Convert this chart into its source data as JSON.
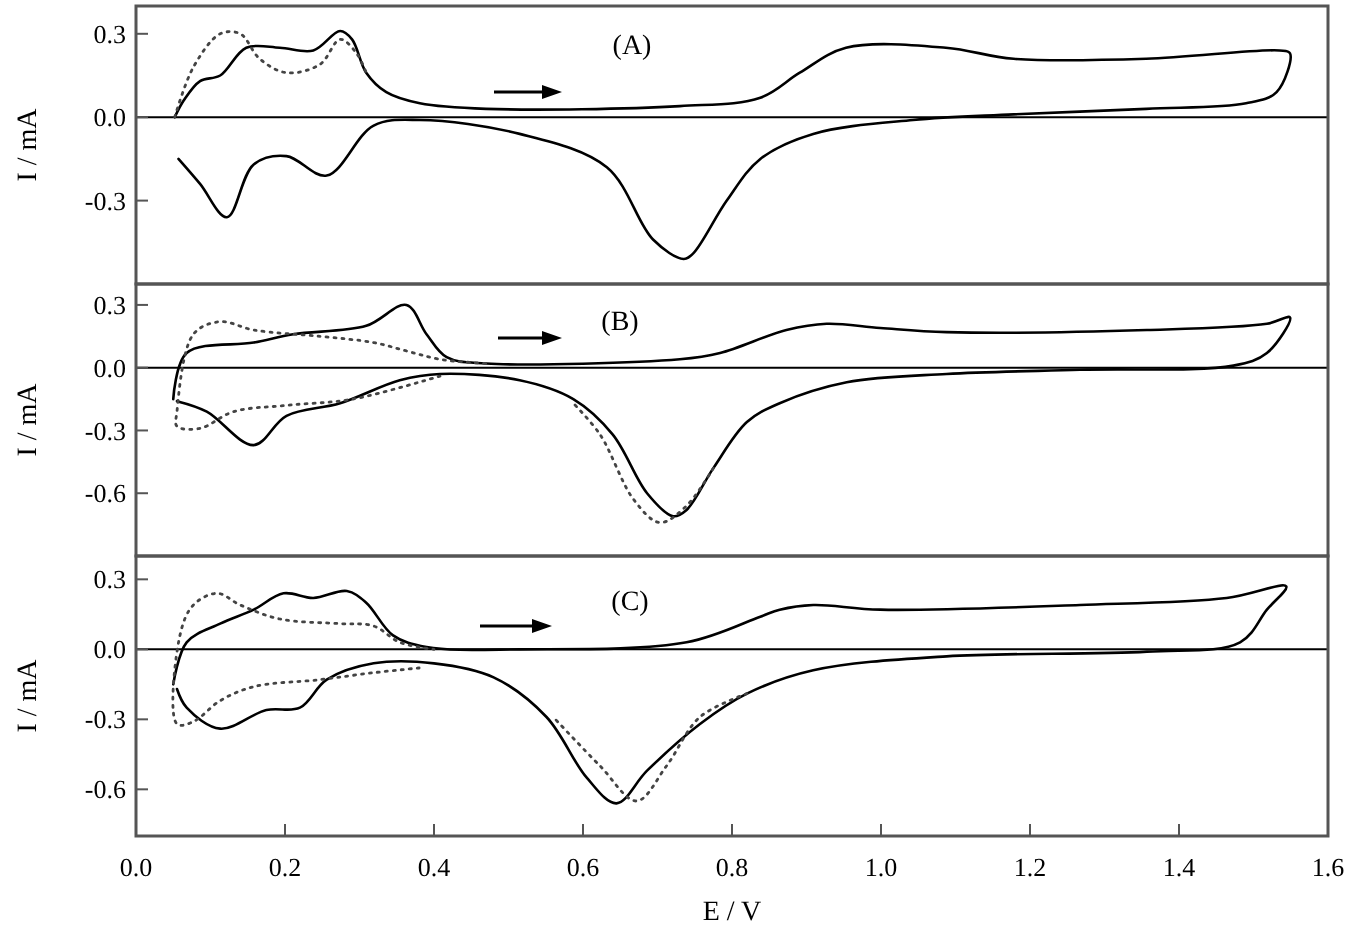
{
  "chart_data": [
    {
      "type": "line",
      "ylabel": "I / mA",
      "annotations": [
        "(A)"
      ],
      "xlim": [
        0,
        1.6
      ],
      "ylim": [
        -0.6,
        0.4
      ],
      "yticks": [
        {
          "value": 0.3,
          "label": "0.3"
        },
        {
          "value": 0,
          "label": "0.0"
        },
        {
          "value": -0.3,
          "label": "-0.3"
        }
      ],
      "tick_labels": "y",
      "ref_lines": [
        {
          "axis": "y",
          "value": 0,
          "color": "#000000"
        }
      ],
      "series": [
        {
          "color": "#000000",
          "line_style": "solid",
          "x": [
            0.052,
            0.064,
            0.086,
            0.113,
            0.148,
            0.193,
            0.238,
            0.274,
            0.29,
            0.309,
            0.336,
            0.381,
            0.47,
            0.73,
            0.838,
            0.891,
            0.953,
            1.087,
            1.178,
            1.356,
            1.535,
            1.549,
            1.531,
            1.49,
            1.356,
            1.178,
            1.043,
            0.909,
            0.838,
            0.793,
            0.748,
            0.735,
            0.694,
            0.632,
            0.515,
            0.381,
            0.319,
            0.256,
            0.202,
            0.158,
            0.122,
            0.086,
            0.057
          ],
          "values": [
            0,
            0.06,
            0.13,
            0.15,
            0.25,
            0.25,
            0.24,
            0.31,
            0.28,
            0.16,
            0.09,
            0.05,
            0.03,
            0.04,
            0.07,
            0.16,
            0.25,
            0.25,
            0.21,
            0.21,
            0.24,
            0.23,
            0.09,
            0.05,
            0.03,
            0.01,
            -0.01,
            -0.06,
            -0.15,
            -0.3,
            -0.49,
            -0.51,
            -0.44,
            -0.18,
            -0.06,
            -0.01,
            -0.03,
            -0.21,
            -0.14,
            -0.17,
            -0.36,
            -0.24,
            -0.15
          ]
        },
        {
          "color": "#444444",
          "line_style": "dotted",
          "x": [
            0.052,
            0.077,
            0.113,
            0.14,
            0.166,
            0.202,
            0.247,
            0.274,
            0.296,
            0.309
          ],
          "values": [
            0,
            0.18,
            0.3,
            0.3,
            0.21,
            0.16,
            0.19,
            0.28,
            0.23,
            0.16
          ]
        }
      ]
    },
    {
      "type": "line",
      "ylabel": "I / mA",
      "annotations": [
        "(B)"
      ],
      "xlim": [
        0,
        1.6
      ],
      "ylim": [
        -0.9,
        0.4
      ],
      "yticks": [
        {
          "value": 0.3,
          "label": "0.3"
        },
        {
          "value": 0,
          "label": "0.0"
        },
        {
          "value": -0.3,
          "label": "-0.3"
        },
        {
          "value": -0.6,
          "label": "-0.6"
        }
      ],
      "tick_labels": "y",
      "ref_lines": [
        {
          "axis": "y",
          "value": 0,
          "color": "#000000"
        }
      ],
      "series": [
        {
          "color": "#000000",
          "line_style": "solid",
          "x": [
            0.05,
            0.068,
            0.158,
            0.211,
            0.309,
            0.363,
            0.39,
            0.417,
            0.47,
            0.73,
            0.784,
            0.873,
            0.927,
            0.999,
            1.088,
            1.357,
            1.518,
            1.549,
            1.518,
            1.473,
            1.267,
            1.088,
            0.954,
            0.864,
            0.82,
            0.775,
            0.739,
            0.721,
            0.686,
            0.64,
            0.587,
            0.515,
            0.408,
            0.354,
            0.274,
            0.202,
            0.158,
            0.095,
            0.055
          ],
          "values": [
            -0.15,
            0.07,
            0.12,
            0.16,
            0.2,
            0.3,
            0.16,
            0.05,
            0.02,
            0.04,
            0.07,
            0.18,
            0.21,
            0.19,
            0.17,
            0.18,
            0.21,
            0.24,
            0.07,
            0.01,
            -0.01,
            -0.03,
            -0.07,
            -0.17,
            -0.26,
            -0.48,
            -0.68,
            -0.71,
            -0.6,
            -0.32,
            -0.15,
            -0.06,
            -0.03,
            -0.06,
            -0.17,
            -0.23,
            -0.37,
            -0.21,
            -0.16
          ]
        },
        {
          "color": "#444444",
          "line_style": "dotted",
          "x": [
            0.408,
            0.291,
            0.202,
            0.131,
            0.086,
            0.055,
            0.055,
            0.077,
            0.113,
            0.158,
            0.247,
            0.319,
            0.363,
            0.408,
            0.47
          ],
          "values": [
            -0.04,
            -0.15,
            -0.18,
            -0.21,
            -0.29,
            -0.28,
            -0.21,
            0.16,
            0.22,
            0.18,
            0.15,
            0.12,
            0.08,
            0.04,
            0.02
          ]
        },
        {
          "color": "#444444",
          "line_style": "dotted",
          "x": [
            0.775,
            0.739,
            0.703,
            0.668,
            0.623,
            0.587
          ],
          "values": [
            -0.48,
            -0.66,
            -0.74,
            -0.63,
            -0.32,
            -0.17
          ]
        }
      ]
    },
    {
      "type": "line",
      "ylabel": "I / mA",
      "xlabel": "E / V",
      "annotations": [
        "(C)"
      ],
      "xlim": [
        0,
        1.6
      ],
      "ylim": [
        -0.8,
        0.4
      ],
      "xticks": [
        {
          "value": 0,
          "label": "0.0"
        },
        {
          "value": 0.2,
          "label": "0.2"
        },
        {
          "value": 0.4,
          "label": "0.4"
        },
        {
          "value": 0.6,
          "label": "0.6"
        },
        {
          "value": 0.8,
          "label": "0.8"
        },
        {
          "value": 1,
          "label": "1.0"
        },
        {
          "value": 1.2,
          "label": "1.2"
        },
        {
          "value": 1.4,
          "label": "1.4"
        },
        {
          "value": 1.6,
          "label": "1.6"
        }
      ],
      "yticks": [
        {
          "value": 0.3,
          "label": "0.3"
        },
        {
          "value": 0,
          "label": "0.0"
        },
        {
          "value": -0.3,
          "label": "-0.3"
        },
        {
          "value": -0.6,
          "label": "-0.6"
        }
      ],
      "ref_lines": [
        {
          "axis": "y",
          "value": 0,
          "color": "#000000"
        }
      ],
      "series": [
        {
          "color": "#000000",
          "line_style": "solid",
          "x": [
            0.05,
            0.068,
            0.113,
            0.158,
            0.198,
            0.238,
            0.283,
            0.309,
            0.345,
            0.39,
            0.515,
            0.739,
            0.838,
            0.864,
            0.909,
            0.999,
            1.267,
            1.464,
            1.544,
            1.518,
            1.482,
            1.357,
            1.088,
            0.909,
            0.82,
            0.757,
            0.686,
            0.645,
            0.605,
            0.551,
            0.48,
            0.4,
            0.319,
            0.256,
            0.22,
            0.175,
            0.113,
            0.068,
            0.055
          ],
          "values": [
            -0.15,
            0.03,
            0.11,
            0.17,
            0.24,
            0.22,
            0.25,
            0.2,
            0.06,
            0.01,
            0,
            0.03,
            0.14,
            0.17,
            0.19,
            0.17,
            0.19,
            0.22,
            0.27,
            0.17,
            0.03,
            -0.01,
            -0.03,
            -0.09,
            -0.19,
            -0.32,
            -0.52,
            -0.66,
            -0.55,
            -0.29,
            -0.12,
            -0.06,
            -0.06,
            -0.13,
            -0.25,
            -0.26,
            -0.34,
            -0.25,
            -0.17
          ]
        },
        {
          "color": "#444444",
          "line_style": "dotted",
          "x": [
            0.38,
            0.319,
            0.247,
            0.158,
            0.113,
            0.077,
            0.055,
            0.059,
            0.077,
            0.109,
            0.14,
            0.193,
            0.274,
            0.319,
            0.354,
            0.4
          ],
          "values": [
            -0.08,
            -0.1,
            -0.13,
            -0.16,
            -0.22,
            -0.31,
            -0.32,
            0.06,
            0.19,
            0.24,
            0.19,
            0.13,
            0.11,
            0.1,
            0.03,
            0
          ]
        },
        {
          "color": "#444444",
          "line_style": "dotted",
          "x": [
            0.82,
            0.757,
            0.712,
            0.672,
            0.623,
            0.56
          ],
          "values": [
            -0.19,
            -0.29,
            -0.5,
            -0.65,
            -0.5,
            -0.29
          ]
        }
      ]
    }
  ]
}
